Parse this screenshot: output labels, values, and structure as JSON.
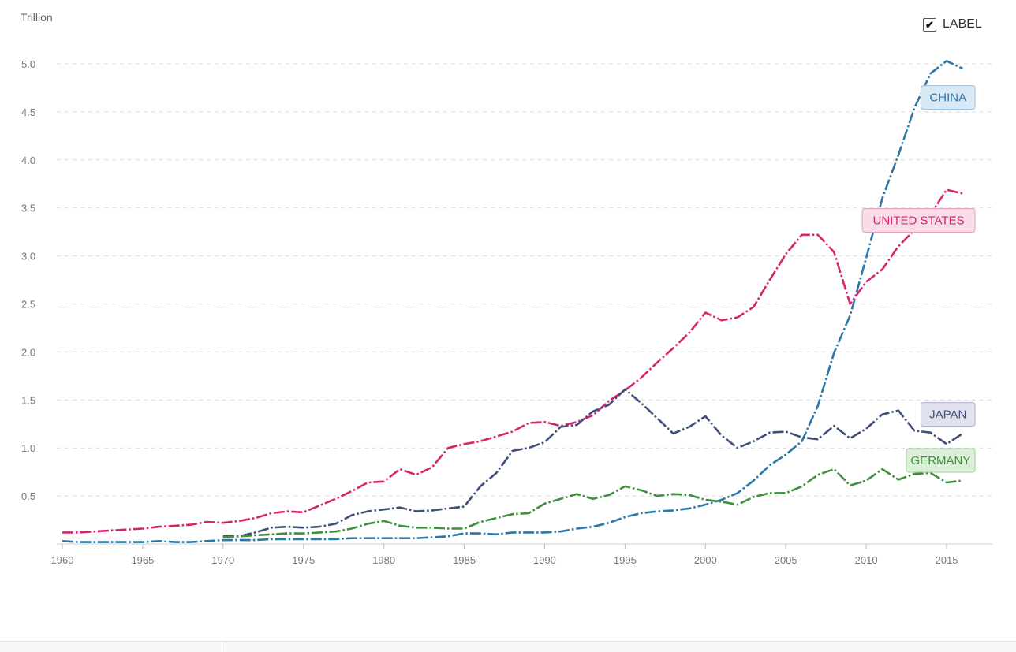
{
  "header": {
    "unit_label": "Trillion",
    "label_toggle": {
      "label": "LABEL",
      "checked": true
    }
  },
  "chart_data": {
    "type": "line",
    "title": "",
    "xlabel": "",
    "ylabel": "",
    "ylim": [
      0,
      5.0
    ],
    "xlim": [
      1960,
      2016
    ],
    "y_ticks": [
      "0.5",
      "1.0",
      "1.5",
      "2.0",
      "2.5",
      "3.0",
      "3.5",
      "4.0",
      "4.5",
      "5.0"
    ],
    "x_ticks": [
      "1960",
      "1965",
      "1970",
      "1975",
      "1980",
      "1985",
      "1990",
      "1995",
      "2000",
      "2005",
      "2010",
      "2015"
    ],
    "grid": "horizontal-dashed",
    "line_style": "dash-dot",
    "series": [
      {
        "name": "CHINA",
        "color": "#2b77a7",
        "label_bg": "#d9e8f5",
        "label_border": "#9dbfdc",
        "x": [
          1960,
          1961,
          1962,
          1963,
          1964,
          1965,
          1966,
          1967,
          1968,
          1969,
          1970,
          1971,
          1972,
          1973,
          1974,
          1975,
          1976,
          1977,
          1978,
          1979,
          1980,
          1981,
          1982,
          1983,
          1984,
          1985,
          1986,
          1987,
          1988,
          1989,
          1990,
          1991,
          1992,
          1993,
          1994,
          1995,
          1996,
          1997,
          1998,
          1999,
          2000,
          2001,
          2002,
          2003,
          2004,
          2005,
          2006,
          2007,
          2008,
          2009,
          2010,
          2011,
          2012,
          2013,
          2014,
          2015,
          2016
        ],
        "values": [
          0.03,
          0.02,
          0.02,
          0.02,
          0.02,
          0.02,
          0.03,
          0.02,
          0.02,
          0.03,
          0.04,
          0.04,
          0.04,
          0.05,
          0.05,
          0.05,
          0.05,
          0.05,
          0.06,
          0.06,
          0.06,
          0.06,
          0.06,
          0.07,
          0.08,
          0.11,
          0.11,
          0.1,
          0.12,
          0.12,
          0.12,
          0.13,
          0.16,
          0.18,
          0.22,
          0.28,
          0.32,
          0.34,
          0.35,
          0.37,
          0.41,
          0.46,
          0.53,
          0.66,
          0.82,
          0.93,
          1.07,
          1.44,
          1.99,
          2.38,
          2.98,
          3.6,
          4.05,
          4.54,
          4.9,
          5.03,
          4.95
        ]
      },
      {
        "name": "UNITED STATES",
        "color": "#d6246e",
        "label_bg": "#f8dde8",
        "label_border": "#e7a1bf",
        "x": [
          1960,
          1961,
          1962,
          1963,
          1964,
          1965,
          1966,
          1967,
          1968,
          1969,
          1970,
          1971,
          1972,
          1973,
          1974,
          1975,
          1976,
          1977,
          1978,
          1979,
          1980,
          1981,
          1982,
          1983,
          1984,
          1985,
          1986,
          1987,
          1988,
          1989,
          1990,
          1991,
          1992,
          1993,
          1994,
          1995,
          1996,
          1997,
          1998,
          1999,
          2000,
          2001,
          2002,
          2003,
          2004,
          2005,
          2006,
          2007,
          2008,
          2009,
          2010,
          2011,
          2012,
          2013,
          2014,
          2015,
          2016
        ],
        "values": [
          0.12,
          0.12,
          0.13,
          0.14,
          0.15,
          0.16,
          0.18,
          0.19,
          0.2,
          0.23,
          0.22,
          0.24,
          0.27,
          0.32,
          0.34,
          0.33,
          0.4,
          0.47,
          0.55,
          0.64,
          0.65,
          0.78,
          0.72,
          0.8,
          1.0,
          1.04,
          1.07,
          1.12,
          1.17,
          1.26,
          1.27,
          1.23,
          1.27,
          1.34,
          1.49,
          1.6,
          1.73,
          1.89,
          2.04,
          2.2,
          2.41,
          2.33,
          2.36,
          2.47,
          2.75,
          3.02,
          3.22,
          3.22,
          3.04,
          2.5,
          2.73,
          2.86,
          3.1,
          3.27,
          3.43,
          3.69,
          3.65
        ]
      },
      {
        "name": "JAPAN",
        "color": "#3e4f7a",
        "label_bg": "#e0e3ef",
        "label_border": "#a7aecb",
        "x": [
          1970,
          1971,
          1972,
          1973,
          1974,
          1975,
          1976,
          1977,
          1978,
          1979,
          1980,
          1981,
          1982,
          1983,
          1984,
          1985,
          1986,
          1987,
          1988,
          1989,
          1990,
          1991,
          1992,
          1993,
          1994,
          1995,
          1996,
          1997,
          1998,
          1999,
          2000,
          2001,
          2002,
          2003,
          2004,
          2005,
          2006,
          2007,
          2008,
          2009,
          2010,
          2011,
          2012,
          2013,
          2014,
          2015,
          2016
        ],
        "values": [
          0.08,
          0.08,
          0.12,
          0.17,
          0.18,
          0.17,
          0.18,
          0.21,
          0.3,
          0.34,
          0.36,
          0.38,
          0.34,
          0.35,
          0.37,
          0.39,
          0.6,
          0.74,
          0.97,
          1.0,
          1.06,
          1.22,
          1.24,
          1.38,
          1.45,
          1.61,
          1.47,
          1.31,
          1.15,
          1.22,
          1.33,
          1.13,
          1.0,
          1.07,
          1.16,
          1.17,
          1.11,
          1.09,
          1.23,
          1.1,
          1.2,
          1.35,
          1.39,
          1.18,
          1.16,
          1.04,
          1.15
        ]
      },
      {
        "name": "GERMANY",
        "color": "#3f8f3c",
        "label_bg": "#dcefd9",
        "label_border": "#9fcc98",
        "x": [
          1970,
          1971,
          1972,
          1973,
          1974,
          1975,
          1976,
          1977,
          1978,
          1979,
          1980,
          1981,
          1982,
          1983,
          1984,
          1985,
          1986,
          1987,
          1988,
          1989,
          1990,
          1991,
          1992,
          1993,
          1994,
          1995,
          1996,
          1997,
          1998,
          1999,
          2000,
          2001,
          2002,
          2003,
          2004,
          2005,
          2006,
          2007,
          2008,
          2009,
          2010,
          2011,
          2012,
          2013,
          2014,
          2015,
          2016
        ],
        "values": [
          0.07,
          0.08,
          0.09,
          0.1,
          0.11,
          0.11,
          0.12,
          0.13,
          0.16,
          0.21,
          0.24,
          0.19,
          0.17,
          0.17,
          0.16,
          0.16,
          0.23,
          0.27,
          0.31,
          0.32,
          0.42,
          0.47,
          0.52,
          0.47,
          0.51,
          0.6,
          0.56,
          0.5,
          0.52,
          0.51,
          0.46,
          0.44,
          0.41,
          0.49,
          0.53,
          0.53,
          0.6,
          0.72,
          0.78,
          0.61,
          0.66,
          0.78,
          0.67,
          0.73,
          0.74,
          0.64,
          0.66
        ]
      }
    ]
  }
}
